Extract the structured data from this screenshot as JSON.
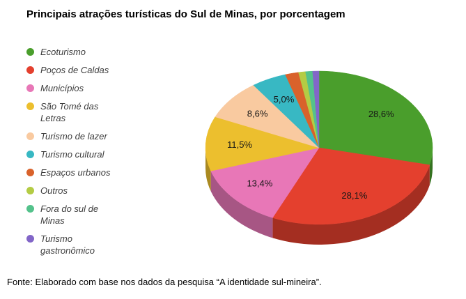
{
  "title": "Principais atrações turísticas do Sul de Minas, por porcentagem",
  "source": "Fonte: Elaborado com base nos dados da pesquisa “A identidade sul-mineira”.",
  "chart_data": {
    "type": "pie",
    "is3d": true,
    "title": "Principais atrações turísticas do Sul de Minas, por porcentagem",
    "legend_position": "left",
    "start_angle_deg": 0,
    "direction": "clockwise",
    "categories": [
      "Ecoturismo",
      "Poços de Caldas",
      "Municípios",
      "São Tomé das Letras",
      "Turismo de lazer",
      "Turismo cultural",
      "Espaços urbanos",
      "Outros",
      "Fora do sul de Minas",
      "Turismo gastronômico"
    ],
    "values": [
      28.6,
      28.1,
      13.4,
      11.5,
      8.6,
      5.0,
      1.9,
      1.0,
      1.0,
      0.9
    ],
    "slice_labels": [
      "28,6%",
      "28,1%",
      "13,4%",
      "11,5%",
      "8,6%",
      "5,0%",
      null,
      null,
      null,
      null
    ],
    "colors": [
      "#4a9e2c",
      "#e4402e",
      "#e877b7",
      "#ecbf2e",
      "#f9caa0",
      "#38b8c3",
      "#d9622b",
      "#b4cc44",
      "#54c28b",
      "#8266c8"
    ]
  }
}
